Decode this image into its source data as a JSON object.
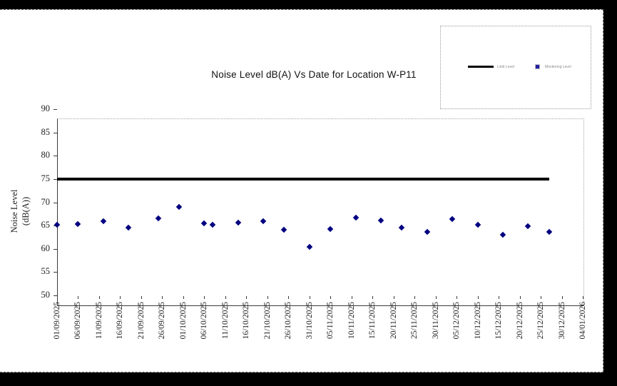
{
  "title": "Noise Level dB(A) Vs Date for Location W-P11",
  "y_axis_title": {
    "line1": "Noise Level",
    "line2": "(dB(A))"
  },
  "legend": {
    "items": [
      {
        "label": "Limit Level",
        "sample": "black-line",
        "color": "#000000"
      },
      {
        "label": "Monitoring Level",
        "sample": "blue-diamond",
        "color": "#000080"
      }
    ]
  },
  "chart_data": {
    "type": "scatter",
    "title": "Noise Level dB(A) Vs Date for Location W-P11",
    "xlabel": "",
    "ylabel": "Noise Level (dB(A))",
    "ylim": [
      50,
      90
    ],
    "ytick_step": 5,
    "ytick_labels": [
      "50",
      "55",
      "60",
      "65",
      "70",
      "75",
      "80",
      "85",
      "90"
    ],
    "x_start": "01/09/2025",
    "x_end": "04/01/2026",
    "xtick_labels": [
      "01/09/2025",
      "06/09/2025",
      "11/09/2025",
      "16/09/2025",
      "21/09/2025",
      "26/09/2025",
      "01/10/2025",
      "06/10/2025",
      "11/10/2025",
      "16/10/2025",
      "21/10/2025",
      "26/10/2025",
      "31/10/2025",
      "05/11/2025",
      "10/11/2025",
      "15/11/2025",
      "20/11/2025",
      "25/11/2025",
      "30/11/2025",
      "05/12/2025",
      "10/12/2025",
      "15/12/2025",
      "20/12/2025",
      "25/12/2025",
      "30/12/2025",
      "04/01/2026"
    ],
    "grid": false,
    "legend_position": "outside-top-right",
    "series": [
      {
        "name": "Limit Level",
        "type": "line",
        "color": "#000000",
        "y": 75,
        "x_from": "01/09/2025",
        "x_to": "27/12/2025"
      },
      {
        "name": "Monitoring Level",
        "type": "scatter",
        "marker": "diamond",
        "color": "#000080",
        "points": [
          {
            "date": "01/09/2025",
            "value": 65.2
          },
          {
            "date": "06/09/2025",
            "value": 65.3
          },
          {
            "date": "12/09/2025",
            "value": 66.0
          },
          {
            "date": "18/09/2025",
            "value": 64.5
          },
          {
            "date": "25/09/2025",
            "value": 66.5
          },
          {
            "date": "30/09/2025",
            "value": 69.0
          },
          {
            "date": "06/10/2025",
            "value": 65.5
          },
          {
            "date": "08/10/2025",
            "value": 65.1
          },
          {
            "date": "14/10/2025",
            "value": 65.6
          },
          {
            "date": "20/10/2025",
            "value": 66.0
          },
          {
            "date": "25/10/2025",
            "value": 64.1
          },
          {
            "date": "31/10/2025",
            "value": 60.4
          },
          {
            "date": "05/11/2025",
            "value": 64.2
          },
          {
            "date": "11/11/2025",
            "value": 66.7
          },
          {
            "date": "17/11/2025",
            "value": 66.1
          },
          {
            "date": "22/11/2025",
            "value": 64.5
          },
          {
            "date": "28/11/2025",
            "value": 63.6
          },
          {
            "date": "04/12/2025",
            "value": 66.4
          },
          {
            "date": "10/12/2025",
            "value": 65.2
          },
          {
            "date": "16/12/2025",
            "value": 63.1
          },
          {
            "date": "22/12/2025",
            "value": 64.8
          },
          {
            "date": "27/12/2025",
            "value": 63.6
          }
        ]
      }
    ]
  }
}
